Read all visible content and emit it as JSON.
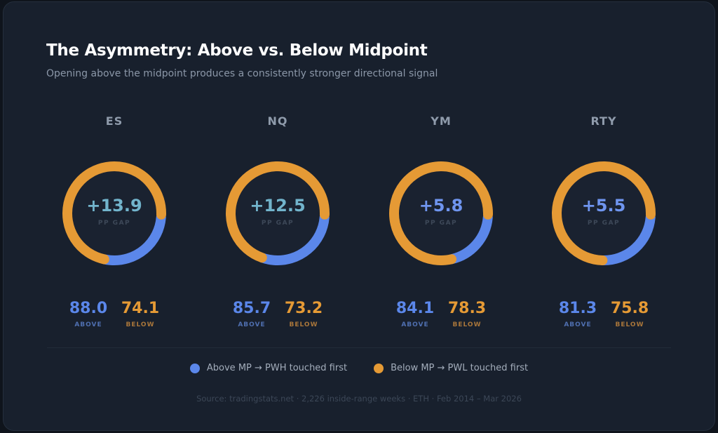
{
  "header": {
    "title": "The Asymmetry: Above vs. Below Midpoint",
    "subtitle": "Opening above the midpoint produces a consistently stronger directional signal"
  },
  "colors": {
    "above": "#5b87ea",
    "below": "#e59a35",
    "above_label": "#4f6fb0",
    "below_label": "#a9763a"
  },
  "chart_data": {
    "type": "donut",
    "items": [
      {
        "ticker": "ES",
        "gap": "+13.9",
        "gap_label": "PP GAP",
        "gap_color": "#72b4cc",
        "above": 88.0,
        "below": 74.1,
        "above_text": "88.0",
        "below_text": "74.1",
        "blue_fraction": 0.27
      },
      {
        "ticker": "NQ",
        "gap": "+12.5",
        "gap_label": "PP GAP",
        "gap_color": "#72b4cc",
        "above": 85.7,
        "below": 73.2,
        "above_text": "85.7",
        "below_text": "73.2",
        "blue_fraction": 0.29
      },
      {
        "ticker": "YM",
        "gap": "+5.8",
        "gap_label": "PP GAP",
        "gap_color": "#6f95ef",
        "above": 84.1,
        "below": 78.3,
        "above_text": "84.1",
        "below_text": "78.3",
        "blue_fraction": 0.2
      },
      {
        "ticker": "RTY",
        "gap": "+5.5",
        "gap_label": "PP GAP",
        "gap_color": "#6f95ef",
        "above": 81.3,
        "below": 75.8,
        "above_text": "81.3",
        "below_text": "75.8",
        "blue_fraction": 0.24
      }
    ],
    "above_label": "ABOVE",
    "below_label": "BELOW",
    "legend": [
      {
        "label": "Above MP → PWH touched first",
        "color": "#5b87ea"
      },
      {
        "label": "Below MP → PWL touched first",
        "color": "#e59a35"
      }
    ]
  },
  "footer": {
    "source": "Source: tradingstats.net · 2,226 inside-range weeks · ETH · Feb 2014 – Mar 2026"
  }
}
